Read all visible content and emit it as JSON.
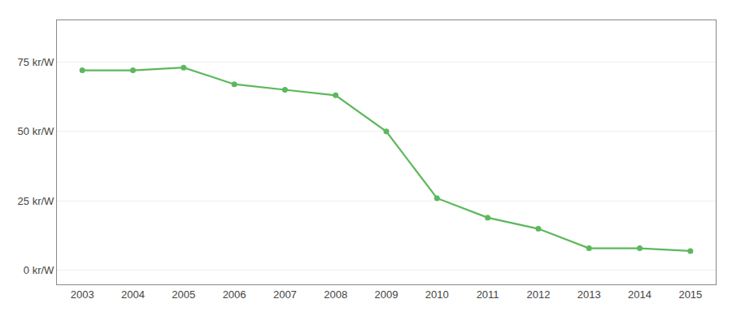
{
  "chart_data": {
    "type": "line",
    "x": [
      2003,
      2004,
      2005,
      2006,
      2007,
      2008,
      2009,
      2010,
      2011,
      2012,
      2013,
      2014,
      2015
    ],
    "values": [
      72,
      72,
      73,
      67,
      65,
      63,
      50,
      26,
      19,
      15,
      8,
      8,
      7
    ],
    "color": "#5cb85c",
    "marker": "circle",
    "xlim": [
      2002.5,
      2015.5
    ],
    "xticks": [
      2003,
      2004,
      2005,
      2006,
      2007,
      2008,
      2009,
      2010,
      2011,
      2012,
      2013,
      2014,
      2015
    ],
    "ylim": [
      -5,
      90
    ],
    "yticks": [
      {
        "value": 0,
        "label": "0 kr/W"
      },
      {
        "value": 25,
        "label": "25 kr/W"
      },
      {
        "value": 50,
        "label": "50 kr/W"
      },
      {
        "value": 75,
        "label": "75 kr/W"
      }
    ],
    "grid": "y"
  }
}
